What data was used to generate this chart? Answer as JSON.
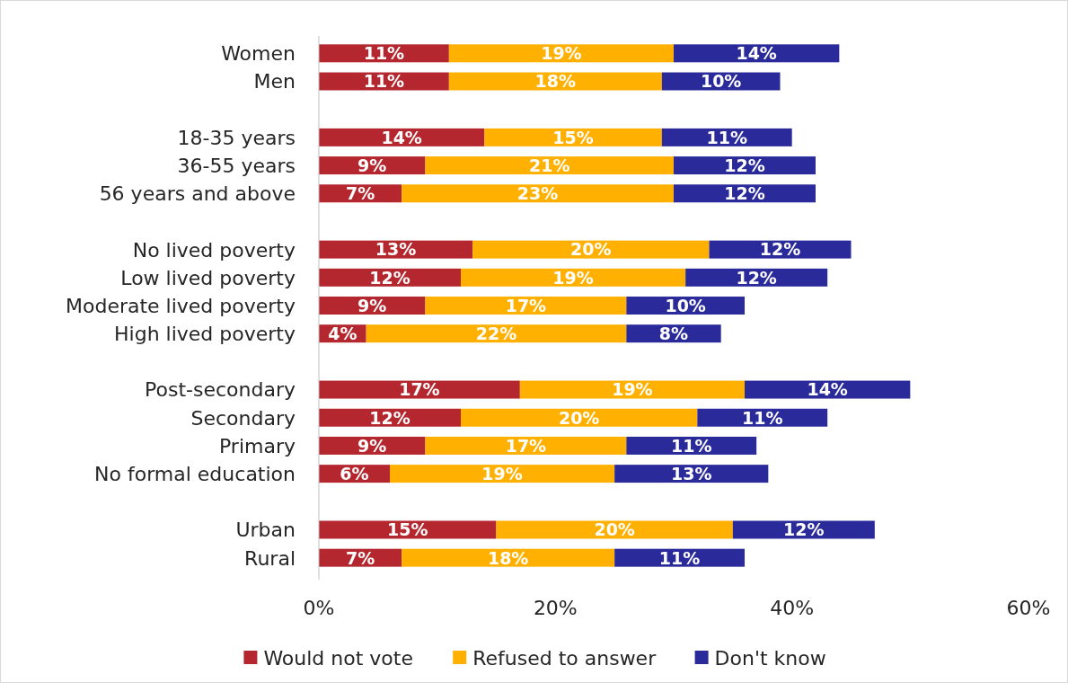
{
  "chart_data": {
    "type": "bar",
    "orientation": "horizontal",
    "stacked": true,
    "categories": [
      "Women",
      "Men",
      null,
      "18-35 years",
      "36-55 years",
      "56 years and above",
      null,
      "No lived poverty",
      "Low lived poverty",
      "Moderate lived poverty",
      "High lived poverty",
      null,
      "Post-secondary",
      "Secondary",
      "Primary",
      "No formal education",
      null,
      "Urban",
      "Rural"
    ],
    "series": [
      {
        "name": "Would not vote",
        "color": "#b4272e",
        "values": [
          11,
          11,
          null,
          14,
          9,
          7,
          null,
          13,
          12,
          9,
          4,
          null,
          17,
          12,
          9,
          6,
          null,
          15,
          7
        ],
        "value_labels": [
          "11%",
          "11%",
          null,
          "14%",
          "9%",
          "7%",
          null,
          "13%",
          "12%",
          "9%",
          "4%",
          null,
          "17%",
          "12%",
          "9%",
          "6%",
          null,
          "15%",
          "7%"
        ]
      },
      {
        "name": "Refused to answer",
        "color": "#ffb000",
        "values": [
          19,
          18,
          null,
          15,
          21,
          23,
          null,
          20,
          19,
          17,
          22,
          null,
          19,
          20,
          17,
          19,
          null,
          20,
          18
        ],
        "value_labels": [
          "19%",
          "18%",
          null,
          "15%",
          "21%",
          "23%",
          null,
          "20%",
          "19%",
          "17%",
          "22%",
          null,
          "19%",
          "20%",
          "17%",
          "19%",
          null,
          "20%",
          "18%"
        ]
      },
      {
        "name": "Don't know",
        "color": "#2b2a9b",
        "values": [
          14,
          10,
          null,
          11,
          12,
          12,
          null,
          12,
          12,
          10,
          8,
          null,
          14,
          11,
          11,
          13,
          null,
          12,
          11
        ],
        "value_labels": [
          "14%",
          "10%",
          null,
          "11%",
          "12%",
          "12%",
          null,
          "12%",
          "12%",
          "10%",
          "8%",
          null,
          "14%",
          "11%",
          "11%",
          "13%",
          null,
          "12%",
          "11%"
        ]
      }
    ],
    "xlim": [
      0,
      60
    ],
    "xticks": [
      {
        "value": 0,
        "label": "0%"
      },
      {
        "value": 20,
        "label": "20%"
      },
      {
        "value": 40,
        "label": "40%"
      },
      {
        "value": 60,
        "label": "60%"
      }
    ],
    "grid": false,
    "legend": "bottom"
  }
}
